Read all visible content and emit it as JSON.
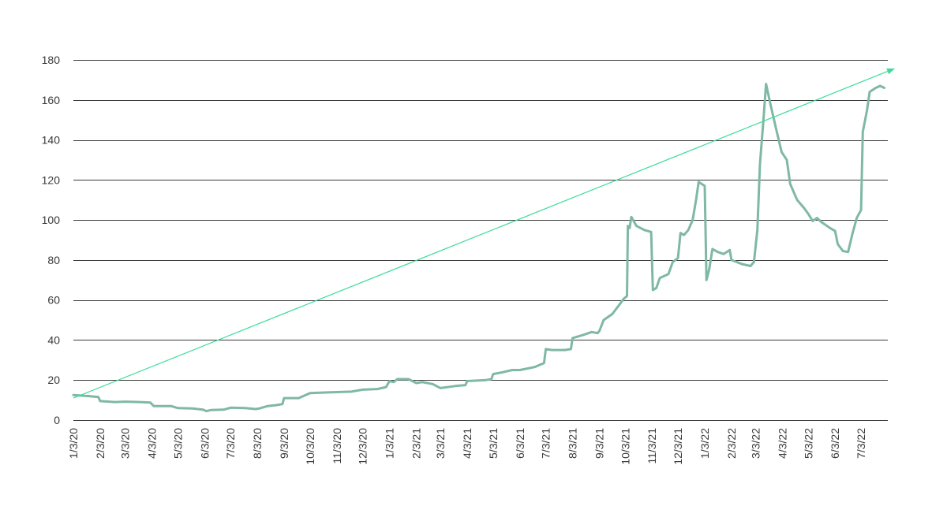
{
  "chart_data": {
    "type": "line",
    "title": "",
    "xlabel": "",
    "ylabel": "",
    "ylim": [
      0,
      180
    ],
    "y_ticks": [
      0,
      20,
      40,
      60,
      80,
      100,
      120,
      140,
      160,
      180
    ],
    "grid": "horizontal",
    "x_ticks": [
      "1/3/20",
      "2/3/20",
      "3/3/20",
      "4/3/20",
      "5/3/20",
      "6/3/20",
      "7/3/20",
      "8/3/20",
      "9/3/20",
      "10/3/20",
      "11/3/20",
      "12/3/20",
      "1/3/21",
      "2/3/21",
      "3/3/21",
      "4/3/21",
      "5/3/21",
      "6/3/21",
      "7/3/21",
      "8/3/21",
      "9/3/21",
      "10/3/21",
      "11/3/21",
      "12/3/21",
      "1/3/22",
      "2/3/22",
      "3/3/22",
      "4/3/22",
      "5/3/22",
      "6/3/22",
      "7/3/22"
    ],
    "x_range": [
      "2020-01-03",
      "2022-08-03"
    ],
    "colors": {
      "series": "#7fb8a4",
      "trend": "#3ddc9a",
      "grid": "#3a3a3a",
      "text": "#3a3a3a"
    },
    "series": [
      {
        "points": [
          [
            "2020-01-03",
            12.5
          ],
          [
            "2020-01-20",
            12
          ],
          [
            "2020-02-01",
            11.5
          ],
          [
            "2020-02-03",
            9.5
          ],
          [
            "2020-02-20",
            9
          ],
          [
            "2020-03-03",
            9.2
          ],
          [
            "2020-03-20",
            9
          ],
          [
            "2020-04-01",
            8.8
          ],
          [
            "2020-04-05",
            7
          ],
          [
            "2020-04-25",
            7
          ],
          [
            "2020-05-03",
            6
          ],
          [
            "2020-05-20",
            5.8
          ],
          [
            "2020-06-01",
            5.2
          ],
          [
            "2020-06-05",
            4.5
          ],
          [
            "2020-06-10",
            5
          ],
          [
            "2020-06-25",
            5.2
          ],
          [
            "2020-07-03",
            6.2
          ],
          [
            "2020-07-20",
            6
          ],
          [
            "2020-08-01",
            5.5
          ],
          [
            "2020-08-05",
            5.8
          ],
          [
            "2020-08-15",
            7
          ],
          [
            "2020-08-25",
            7.5
          ],
          [
            "2020-09-01",
            8
          ],
          [
            "2020-09-03",
            11
          ],
          [
            "2020-09-20",
            11
          ],
          [
            "2020-10-03",
            13.5
          ],
          [
            "2020-10-20",
            13.8
          ],
          [
            "2020-11-03",
            14
          ],
          [
            "2020-11-20",
            14.2
          ],
          [
            "2020-12-03",
            15.2
          ],
          [
            "2020-12-20",
            15.5
          ],
          [
            "2020-12-30",
            16.5
          ],
          [
            "2021-01-03",
            19.5
          ],
          [
            "2021-01-08",
            19
          ],
          [
            "2021-01-12",
            20.5
          ],
          [
            "2021-01-25",
            20.5
          ],
          [
            "2021-02-03",
            18.5
          ],
          [
            "2021-02-10",
            19
          ],
          [
            "2021-02-22",
            18
          ],
          [
            "2021-03-03",
            16
          ],
          [
            "2021-03-20",
            17
          ],
          [
            "2021-04-01",
            17.5
          ],
          [
            "2021-04-03",
            19.5
          ],
          [
            "2021-04-25",
            20
          ],
          [
            "2021-05-01",
            20.5
          ],
          [
            "2021-05-03",
            23
          ],
          [
            "2021-05-15",
            24
          ],
          [
            "2021-05-25",
            25
          ],
          [
            "2021-06-03",
            25
          ],
          [
            "2021-06-20",
            26.5
          ],
          [
            "2021-07-01",
            28.5
          ],
          [
            "2021-07-03",
            35.5
          ],
          [
            "2021-07-10",
            35
          ],
          [
            "2021-07-25",
            35
          ],
          [
            "2021-08-01",
            35.5
          ],
          [
            "2021-08-03",
            41
          ],
          [
            "2021-08-15",
            42.5
          ],
          [
            "2021-08-25",
            44
          ],
          [
            "2021-09-01",
            43.5
          ],
          [
            "2021-09-03",
            44.5
          ],
          [
            "2021-09-08",
            50
          ],
          [
            "2021-09-18",
            53
          ],
          [
            "2021-09-25",
            57
          ],
          [
            "2021-10-01",
            60.5
          ],
          [
            "2021-10-05",
            62
          ],
          [
            "2021-10-06",
            97
          ],
          [
            "2021-10-08",
            96
          ],
          [
            "2021-10-10",
            101.5
          ],
          [
            "2021-10-16",
            97
          ],
          [
            "2021-10-25",
            95
          ],
          [
            "2021-11-02",
            94
          ],
          [
            "2021-11-04",
            65
          ],
          [
            "2021-11-08",
            66
          ],
          [
            "2021-11-12",
            71
          ],
          [
            "2021-11-22",
            73
          ],
          [
            "2021-11-27",
            79
          ],
          [
            "2021-12-03",
            81
          ],
          [
            "2021-12-06",
            93.5
          ],
          [
            "2021-12-10",
            92.5
          ],
          [
            "2021-12-15",
            95
          ],
          [
            "2021-12-20",
            100
          ],
          [
            "2021-12-24",
            110
          ],
          [
            "2021-12-27",
            119
          ],
          [
            "2022-01-03",
            117
          ],
          [
            "2022-01-05",
            70
          ],
          [
            "2022-01-08",
            75
          ],
          [
            "2022-01-12",
            85.5
          ],
          [
            "2022-01-18",
            84
          ],
          [
            "2022-01-25",
            83
          ],
          [
            "2022-02-01",
            85
          ],
          [
            "2022-02-03",
            80
          ],
          [
            "2022-02-15",
            78
          ],
          [
            "2022-02-25",
            77
          ],
          [
            "2022-03-01",
            79
          ],
          [
            "2022-03-05",
            95
          ],
          [
            "2022-03-08",
            128
          ],
          [
            "2022-03-12",
            150
          ],
          [
            "2022-03-15",
            168
          ],
          [
            "2022-03-20",
            158
          ],
          [
            "2022-03-27",
            145
          ],
          [
            "2022-04-02",
            134
          ],
          [
            "2022-04-08",
            130
          ],
          [
            "2022-04-12",
            118
          ],
          [
            "2022-04-20",
            110
          ],
          [
            "2022-04-28",
            106
          ],
          [
            "2022-05-03",
            103
          ],
          [
            "2022-05-08",
            99.5
          ],
          [
            "2022-05-13",
            101
          ],
          [
            "2022-05-18",
            99
          ],
          [
            "2022-05-28",
            96
          ],
          [
            "2022-06-03",
            94.5
          ],
          [
            "2022-06-06",
            88
          ],
          [
            "2022-06-12",
            84.5
          ],
          [
            "2022-06-18",
            84
          ],
          [
            "2022-06-23",
            93
          ],
          [
            "2022-06-28",
            101
          ],
          [
            "2022-07-03",
            105
          ],
          [
            "2022-07-05",
            144
          ],
          [
            "2022-07-10",
            155
          ],
          [
            "2022-07-13",
            164
          ],
          [
            "2022-07-20",
            166
          ],
          [
            "2022-07-25",
            167
          ],
          [
            "2022-07-30",
            166
          ]
        ]
      }
    ],
    "trendline": {
      "from": [
        "2020-01-03",
        11
      ],
      "to": [
        "2022-08-03",
        175
      ],
      "arrow": true
    }
  }
}
